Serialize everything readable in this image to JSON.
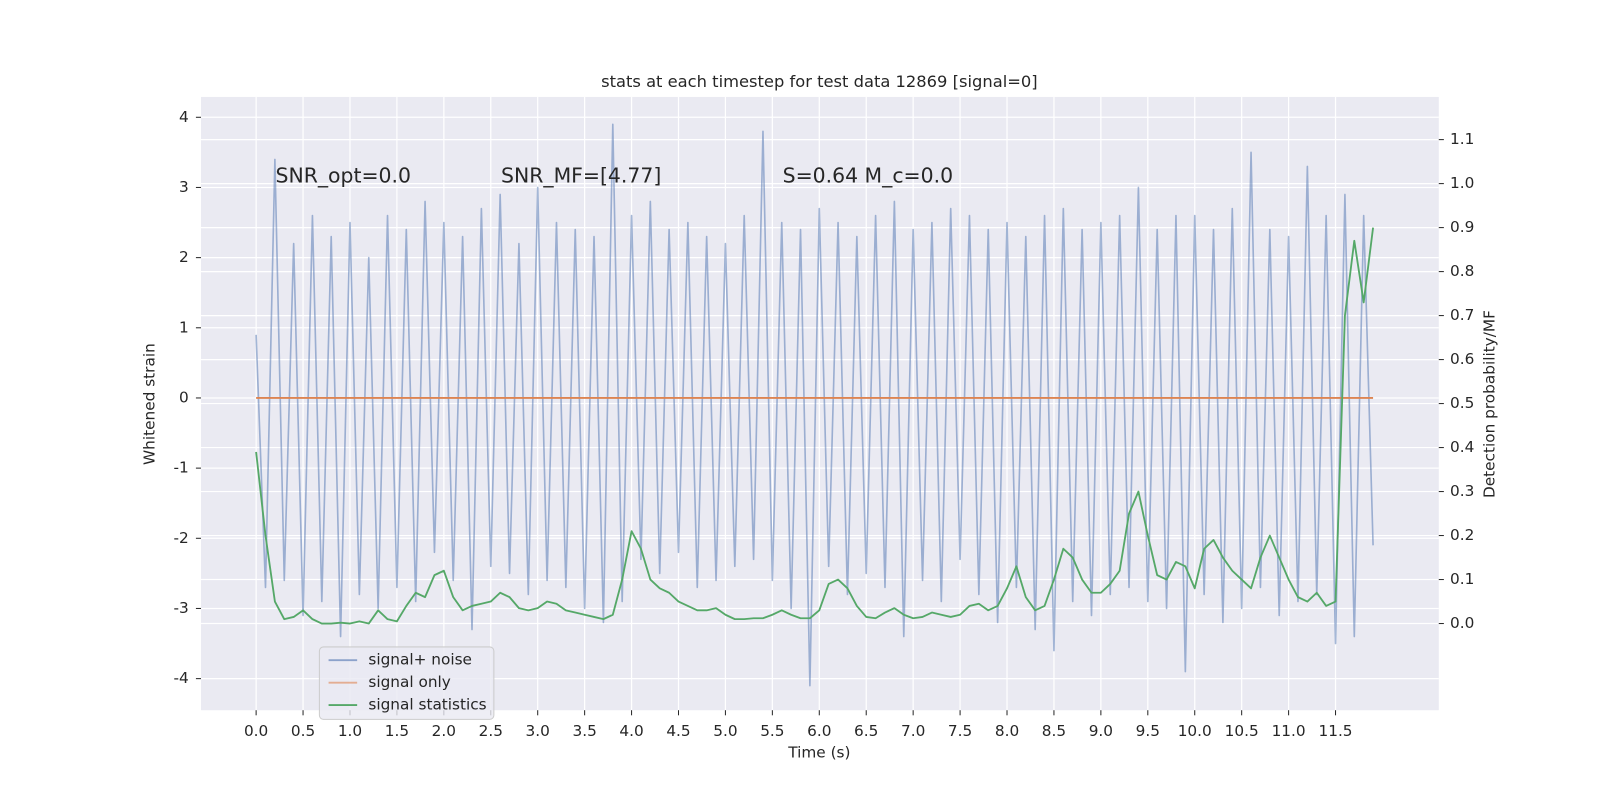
{
  "chart_data": {
    "type": "line",
    "title": "stats at each timestep for test data 12869 [signal=0]",
    "xlabel": "Time (s)",
    "ylabel": "Whitened strain",
    "y2label": "Detection probability/MF",
    "annotations": [
      "SNR_opt=0.0",
      "SNR_MF=[4.77]",
      "S=0.64   M_c=0.0"
    ],
    "x": [
      0,
      0.1,
      0.2,
      0.3,
      0.4,
      0.5,
      0.6,
      0.7,
      0.8,
      0.9,
      1,
      1.1,
      1.2,
      1.3,
      1.4,
      1.5,
      1.6,
      1.7,
      1.8,
      1.9,
      2,
      2.1,
      2.2,
      2.3,
      2.4,
      2.5,
      2.6,
      2.7,
      2.8,
      2.9,
      3,
      3.1,
      3.2,
      3.3,
      3.4,
      3.5,
      3.6,
      3.7,
      3.8,
      3.9,
      4,
      4.1,
      4.2,
      4.3,
      4.4,
      4.5,
      4.6,
      4.7,
      4.8,
      4.9,
      5,
      5.1,
      5.2,
      5.3,
      5.4,
      5.5,
      5.6,
      5.7,
      5.8,
      5.9,
      6,
      6.1,
      6.2,
      6.3,
      6.4,
      6.5,
      6.6,
      6.7,
      6.8,
      6.9,
      7,
      7.1,
      7.2,
      7.3,
      7.4,
      7.5,
      7.6,
      7.7,
      7.8,
      7.9,
      8,
      8.1,
      8.2,
      8.3,
      8.4,
      8.5,
      8.6,
      8.7,
      8.8,
      8.9,
      9,
      9.1,
      9.2,
      9.3,
      9.4,
      9.5,
      9.6,
      9.7,
      9.8,
      9.9,
      10,
      10.1,
      10.2,
      10.3,
      10.4,
      10.5,
      10.6,
      10.7,
      10.8,
      10.9,
      11,
      11.1,
      11.2,
      11.3,
      11.4,
      11.5,
      11.6,
      11.7,
      11.8,
      11.9
    ],
    "series": [
      {
        "name": "signal+ noise",
        "color": "#4c72b0",
        "values": [
          0.9,
          -2.7,
          3.4,
          -2.6,
          2.2,
          -3.1,
          2.6,
          -2.9,
          2.3,
          -3.4,
          2.5,
          -2.8,
          2.0,
          -3.0,
          2.6,
          -2.7,
          2.4,
          -2.9,
          2.8,
          -2.2,
          2.5,
          -2.6,
          2.3,
          -3.3,
          2.7,
          -2.4,
          2.9,
          -2.5,
          2.2,
          -2.8,
          3.0,
          -2.6,
          2.5,
          -2.7,
          2.4,
          -3.0,
          2.3,
          -3.2,
          3.9,
          -2.9,
          2.6,
          -2.3,
          2.8,
          -2.5,
          2.4,
          -2.2,
          2.5,
          -2.7,
          2.3,
          -2.6,
          2.2,
          -2.4,
          2.6,
          -2.3,
          3.8,
          -2.6,
          2.5,
          -3.0,
          2.4,
          -4.1,
          2.7,
          -2.4,
          2.5,
          -2.8,
          2.3,
          -2.5,
          2.6,
          -2.7,
          2.8,
          -3.4,
          2.4,
          -2.6,
          2.5,
          -2.9,
          2.7,
          -2.3,
          2.6,
          -2.8,
          2.4,
          -3.2,
          2.5,
          -2.7,
          2.3,
          -3.3,
          2.6,
          -3.6,
          2.7,
          -2.9,
          2.4,
          -3.1,
          2.5,
          -2.8,
          2.6,
          -2.7,
          3.0,
          -2.9,
          2.4,
          -3.0,
          2.6,
          -3.9,
          2.6,
          -2.8,
          2.4,
          -3.2,
          2.7,
          -3.0,
          3.5,
          -2.7,
          2.4,
          -3.1,
          2.3,
          -2.9,
          3.3,
          -2.8,
          2.6,
          -3.5,
          2.9,
          -3.4,
          2.6,
          -2.1
        ]
      },
      {
        "name": "signal only",
        "color": "#dd8452",
        "values": [
          0,
          0,
          0,
          0,
          0,
          0,
          0,
          0,
          0,
          0,
          0,
          0,
          0,
          0,
          0,
          0,
          0,
          0,
          0,
          0,
          0,
          0,
          0,
          0,
          0,
          0,
          0,
          0,
          0,
          0,
          0,
          0,
          0,
          0,
          0,
          0,
          0,
          0,
          0,
          0,
          0,
          0,
          0,
          0,
          0,
          0,
          0,
          0,
          0,
          0,
          0,
          0,
          0,
          0,
          0,
          0,
          0,
          0,
          0,
          0,
          0,
          0,
          0,
          0,
          0,
          0,
          0,
          0,
          0,
          0,
          0,
          0,
          0,
          0,
          0,
          0,
          0,
          0,
          0,
          0,
          0,
          0,
          0,
          0,
          0,
          0,
          0,
          0,
          0,
          0,
          0,
          0,
          0,
          0,
          0,
          0,
          0,
          0,
          0,
          0,
          0,
          0,
          0,
          0,
          0,
          0,
          0,
          0,
          0,
          0,
          0,
          0,
          0,
          0,
          0,
          0,
          0,
          0,
          0,
          0
        ]
      },
      {
        "name": "signal statistics",
        "color": "#55a868",
        "axis": "y2",
        "values": [
          0.39,
          0.2,
          0.05,
          0.01,
          0.015,
          0.03,
          0.01,
          0.0,
          0.0,
          0.002,
          0.0,
          0.005,
          0.0,
          0.03,
          0.01,
          0.005,
          0.04,
          0.07,
          0.06,
          0.11,
          0.12,
          0.06,
          0.03,
          0.04,
          0.045,
          0.05,
          0.07,
          0.06,
          0.035,
          0.03,
          0.035,
          0.05,
          0.045,
          0.03,
          0.025,
          0.02,
          0.015,
          0.01,
          0.02,
          0.1,
          0.21,
          0.17,
          0.1,
          0.08,
          0.07,
          0.05,
          0.04,
          0.03,
          0.03,
          0.035,
          0.02,
          0.01,
          0.01,
          0.012,
          0.012,
          0.02,
          0.03,
          0.02,
          0.012,
          0.012,
          0.03,
          0.09,
          0.1,
          0.08,
          0.04,
          0.015,
          0.012,
          0.025,
          0.035,
          0.02,
          0.012,
          0.015,
          0.025,
          0.02,
          0.015,
          0.02,
          0.04,
          0.045,
          0.03,
          0.04,
          0.08,
          0.13,
          0.06,
          0.03,
          0.04,
          0.1,
          0.17,
          0.15,
          0.1,
          0.07,
          0.07,
          0.09,
          0.12,
          0.25,
          0.3,
          0.2,
          0.11,
          0.1,
          0.14,
          0.13,
          0.08,
          0.17,
          0.19,
          0.15,
          0.12,
          0.1,
          0.08,
          0.15,
          0.2,
          0.15,
          0.1,
          0.06,
          0.05,
          0.07,
          0.04,
          0.05,
          0.7,
          0.87,
          0.73,
          0.9
        ]
      }
    ],
    "xlim": [
      -0.587,
      12.6
    ],
    "ylim": [
      -4.45,
      4.29
    ],
    "y2lim": [
      -0.197,
      1.197
    ],
    "xticks": [
      {
        "value": 0,
        "label": "0.0"
      },
      0.5,
      {
        "value": 1,
        "label": "1.0"
      },
      1.5,
      {
        "value": 2,
        "label": "2.0"
      },
      2.5,
      {
        "value": 3,
        "label": "3.0"
      },
      3.5,
      {
        "value": 4,
        "label": "4.0"
      },
      4.5,
      {
        "value": 5,
        "label": "5.0"
      },
      5.5,
      {
        "value": 6,
        "label": "6.0"
      },
      6.5,
      {
        "value": 7,
        "label": "7.0"
      },
      7.5,
      {
        "value": 8,
        "label": "8.0"
      },
      8.5,
      {
        "value": 9,
        "label": "9.0"
      },
      9.5,
      {
        "value": 10,
        "label": "10.0"
      },
      10.5,
      {
        "value": 11,
        "label": "11.0"
      },
      11.5
    ],
    "yticks": [
      -4,
      -3,
      -2,
      -1,
      0,
      1,
      2,
      3,
      4
    ],
    "y2ticks": [
      {
        "value": 0,
        "label": "0.0"
      },
      0.1,
      0.2,
      0.3,
      0.4,
      0.5,
      0.6,
      0.7,
      0.8,
      0.9,
      {
        "value": 1,
        "label": "1.0"
      },
      1.1
    ],
    "grid": true,
    "legend": "lower left",
    "background": "#eaeaf2"
  }
}
